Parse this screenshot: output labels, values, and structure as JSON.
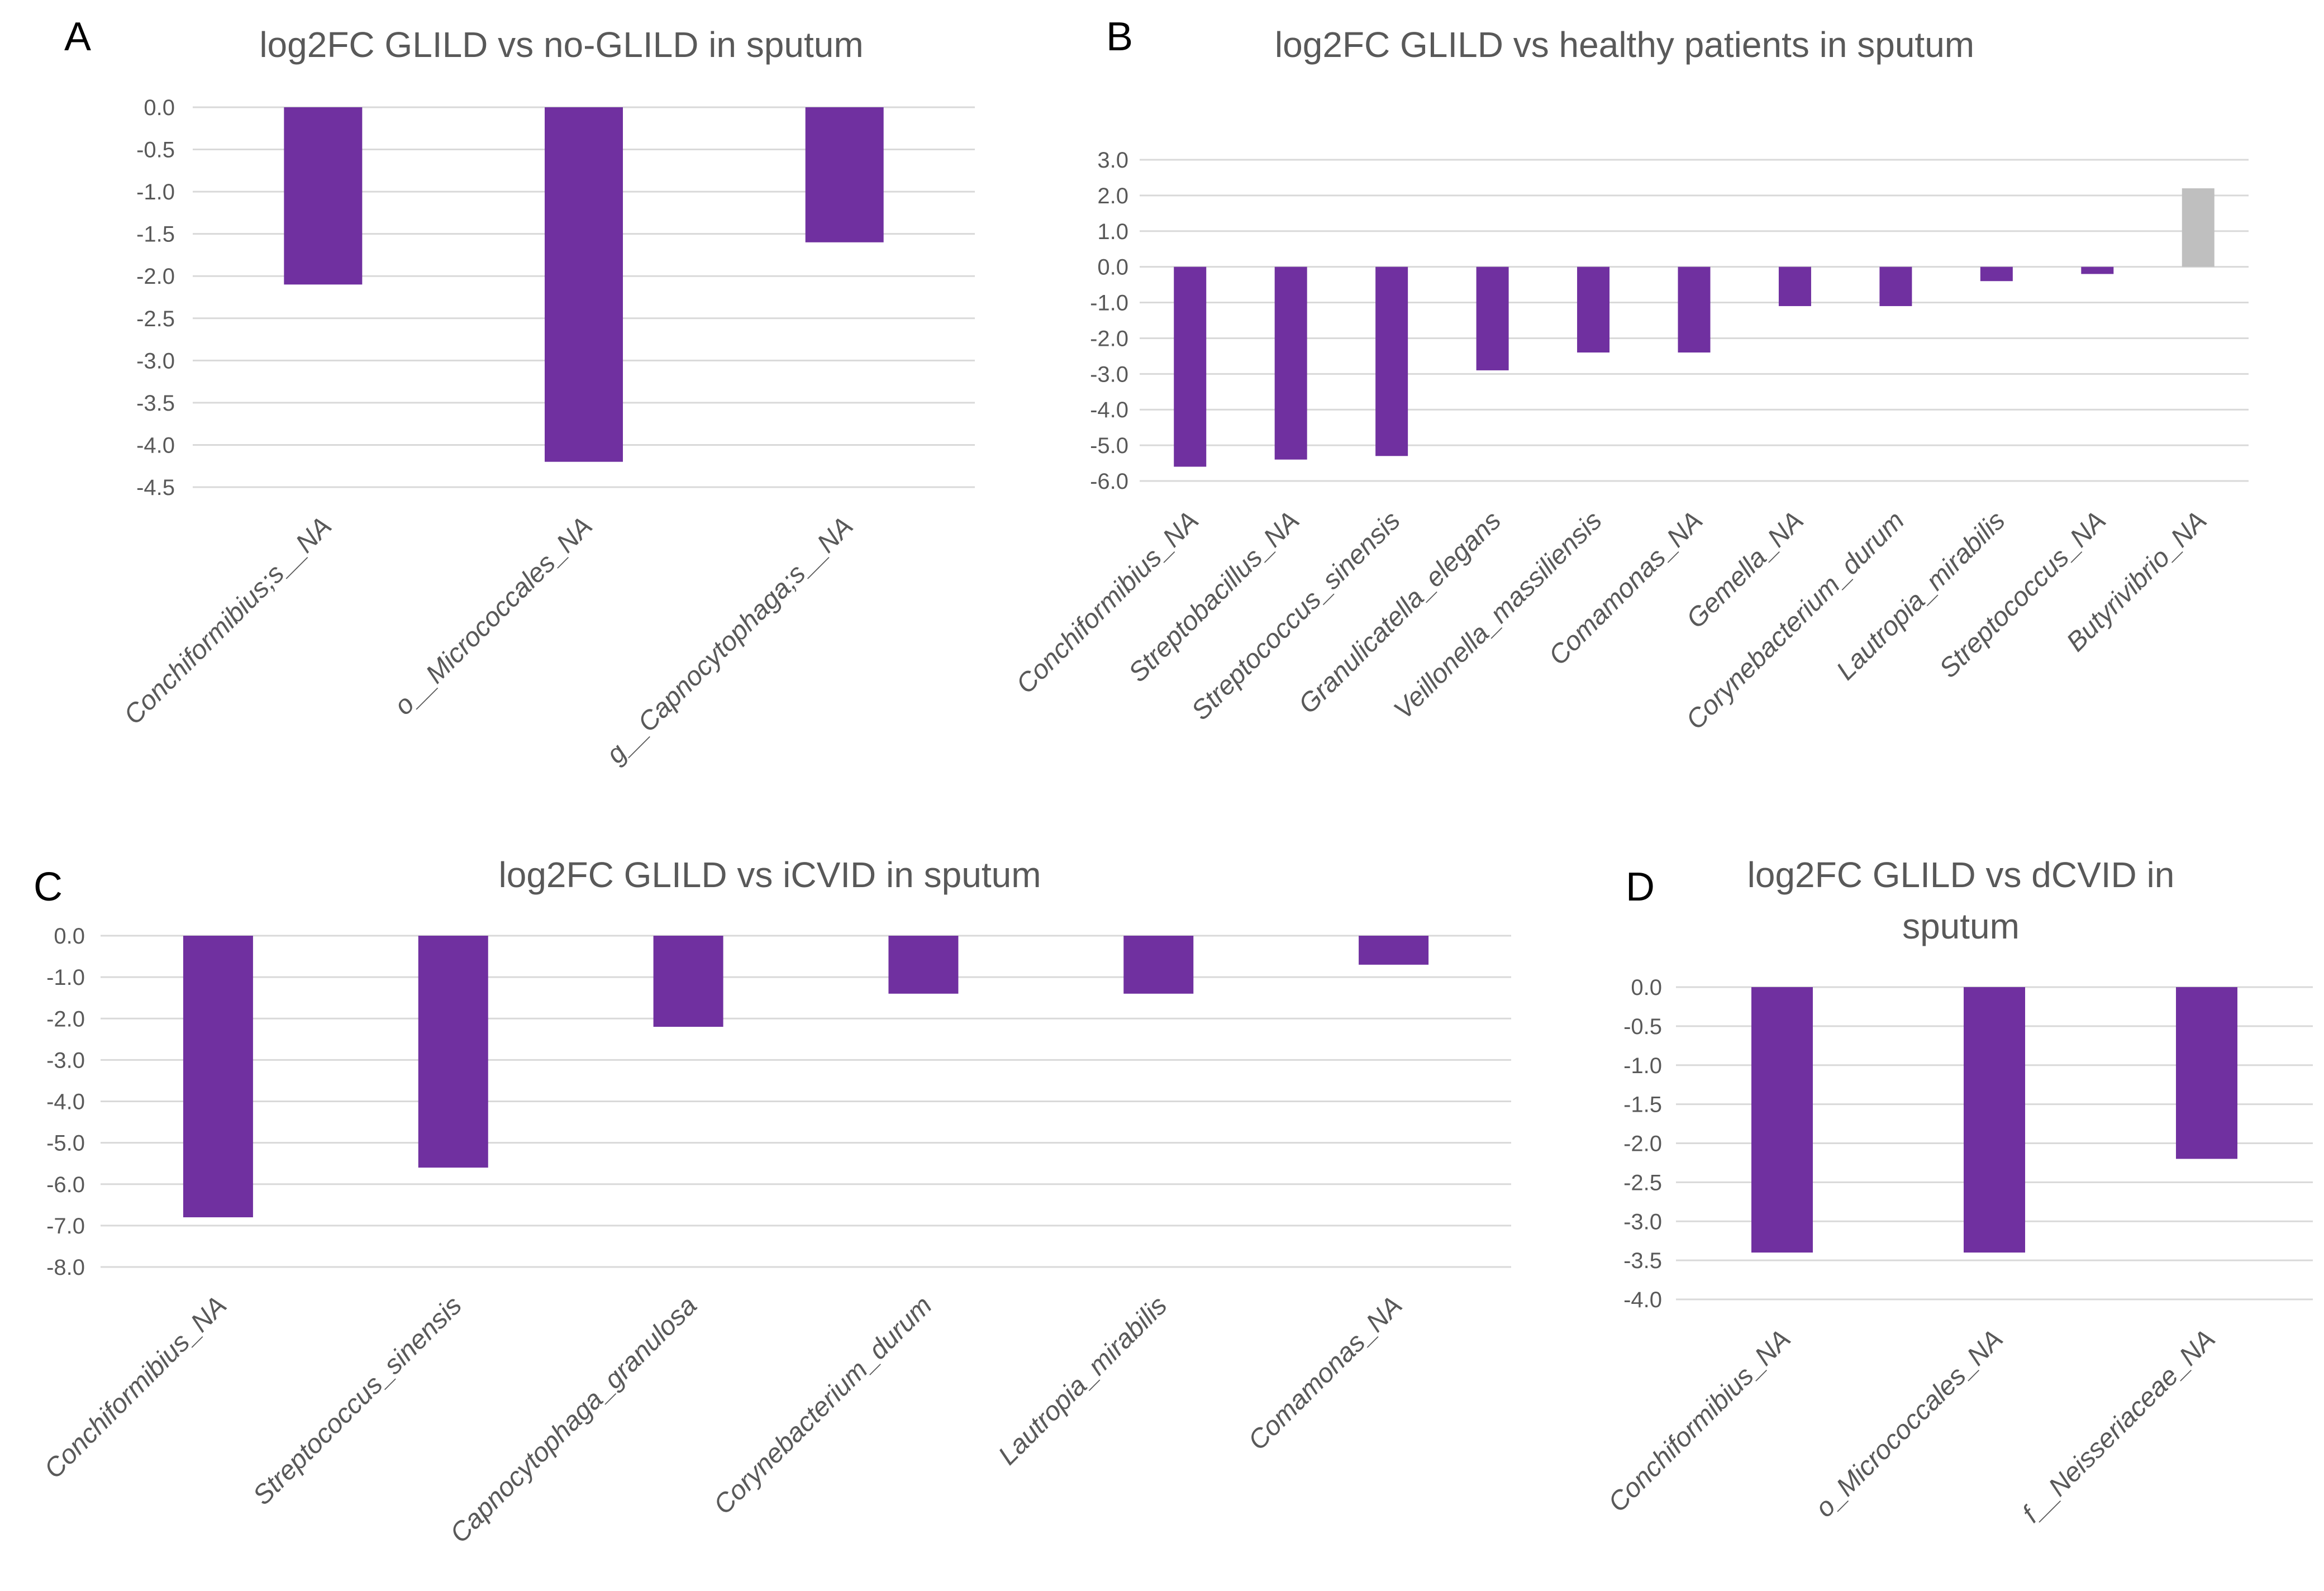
{
  "chart_data": [
    {
      "panel": "A",
      "type": "bar",
      "title": "log2FC GLILD vs no-GLILD in sputum",
      "categories": [
        "Conchiformibius;s__NA",
        "o__Micrococcales_NA",
        "g__Capnocytophaga;s__NA"
      ],
      "values": [
        -2.1,
        -4.2,
        -1.6
      ],
      "ylim": [
        -4.5,
        0.0
      ],
      "yticks": [
        0.0,
        -0.5,
        -1.0,
        -1.5,
        -2.0,
        -2.5,
        -3.0,
        -3.5,
        -4.0,
        -4.5
      ],
      "xlabel": "",
      "ylabel": "",
      "bar_colors": [
        "#7030a0",
        "#7030a0",
        "#7030a0"
      ]
    },
    {
      "panel": "B",
      "type": "bar",
      "title": "log2FC GLILD vs healthy patients in sputum",
      "categories": [
        "Conchiformibius_NA",
        "Streptobacillus_NA",
        "Streptococcus_sinensis",
        "Granulicatella_elegans",
        "Veillonella_massiliensis",
        "Comamonas_NA",
        "Gemella_NA",
        "Corynebacterium_durum",
        "Lautropia_mirabilis",
        "Streptococcus_NA",
        "Butyrivibrio_NA"
      ],
      "values": [
        -5.6,
        -5.4,
        -5.3,
        -2.9,
        -2.4,
        -2.4,
        -1.1,
        -1.1,
        -0.4,
        -0.2,
        2.2
      ],
      "ylim": [
        -6.0,
        3.0
      ],
      "yticks": [
        3.0,
        2.0,
        1.0,
        0.0,
        -1.0,
        -2.0,
        -3.0,
        -4.0,
        -5.0,
        -6.0
      ],
      "xlabel": "",
      "ylabel": "",
      "bar_colors": [
        "#7030a0",
        "#7030a0",
        "#7030a0",
        "#7030a0",
        "#7030a0",
        "#7030a0",
        "#7030a0",
        "#7030a0",
        "#7030a0",
        "#7030a0",
        "#bfbfbf"
      ]
    },
    {
      "panel": "C",
      "type": "bar",
      "title": "log2FC GLILD vs iCVID in sputum",
      "categories": [
        "Conchiformibius_NA",
        "Streptococcus_sinensis",
        "Capnocytophaga_granulosa",
        "Corynebacterium_durum",
        "Lautropia_mirabilis",
        "Comamonas_NA"
      ],
      "values": [
        -6.8,
        -5.6,
        -2.2,
        -1.4,
        -1.4,
        -0.7
      ],
      "ylim": [
        -8.0,
        0.0
      ],
      "yticks": [
        0.0,
        -1.0,
        -2.0,
        -3.0,
        -4.0,
        -5.0,
        -6.0,
        -7.0,
        -8.0
      ],
      "xlabel": "",
      "ylabel": "",
      "bar_colors": [
        "#7030a0",
        "#7030a0",
        "#7030a0",
        "#7030a0",
        "#7030a0",
        "#7030a0"
      ]
    },
    {
      "panel": "D",
      "type": "bar",
      "title": [
        "log2FC GLILD vs dCVID in",
        "sputum"
      ],
      "categories": [
        "Conchiformibius_NA",
        "o_Micrococcales_NA",
        "f__Neisseriaceae_NA"
      ],
      "values": [
        -3.4,
        -3.4,
        -2.2
      ],
      "ylim": [
        -4.0,
        0.0
      ],
      "yticks": [
        0.0,
        -0.5,
        -1.0,
        -1.5,
        -2.0,
        -2.5,
        -3.0,
        -3.5,
        -4.0
      ],
      "xlabel": "",
      "ylabel": "",
      "bar_colors": [
        "#7030a0",
        "#7030a0",
        "#7030a0"
      ]
    }
  ]
}
